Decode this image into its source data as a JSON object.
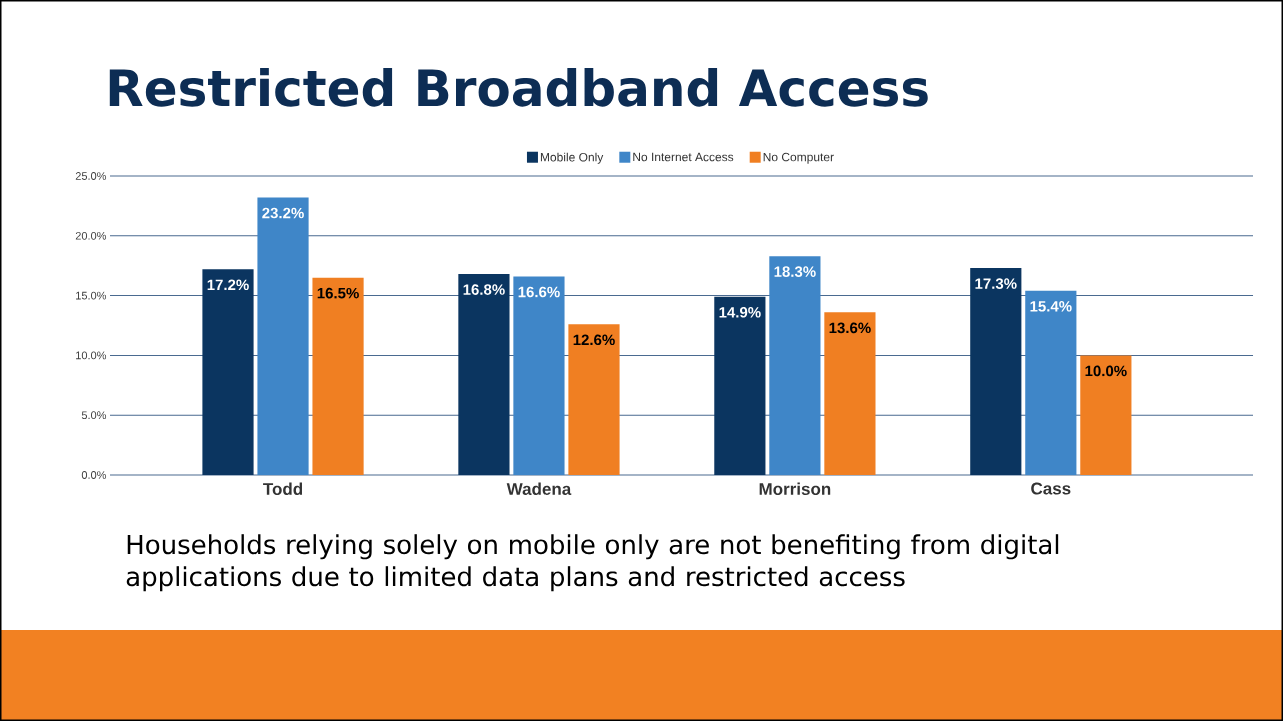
{
  "chart_data": {
    "type": "bar",
    "title": "Restricted Broadband Access",
    "categories": [
      "Todd",
      "Wadena",
      "Morrison",
      "Cass"
    ],
    "series": [
      {
        "name": "Mobile Only",
        "color": "#0b3560",
        "values": [
          17.2,
          16.8,
          14.9,
          17.3
        ],
        "value_labels": [
          "17.2%",
          "16.8%",
          "14.9%",
          "17.3%"
        ]
      },
      {
        "name": "No Internet Access",
        "color": "#3f86c8",
        "values": [
          23.2,
          16.6,
          18.3,
          15.4
        ],
        "value_labels": [
          "23.2%",
          "16.6%",
          "18.3%",
          "15.4%"
        ]
      },
      {
        "name": "No Computer",
        "color": "#f07f22",
        "values": [
          16.5,
          12.6,
          13.6,
          10.0
        ],
        "value_labels": [
          "16.5%",
          "12.6%",
          "13.6%",
          "10.0%"
        ]
      }
    ],
    "ylim": [
      0,
      25
    ],
    "yticks": [
      {
        "value": 0,
        "label": "0.0%"
      },
      {
        "value": 5,
        "label": "5.0%"
      },
      {
        "value": 10,
        "label": "10.0%"
      },
      {
        "value": 15,
        "label": "15.0%"
      },
      {
        "value": 20,
        "label": "20.0%"
      },
      {
        "value": 25,
        "label": "25.0%"
      }
    ],
    "grid": "y",
    "legend": "top",
    "annotations": [
      "Households relying solely on mobile only are not benefiting from digital applications due to limited data plans and restricted access"
    ]
  }
}
